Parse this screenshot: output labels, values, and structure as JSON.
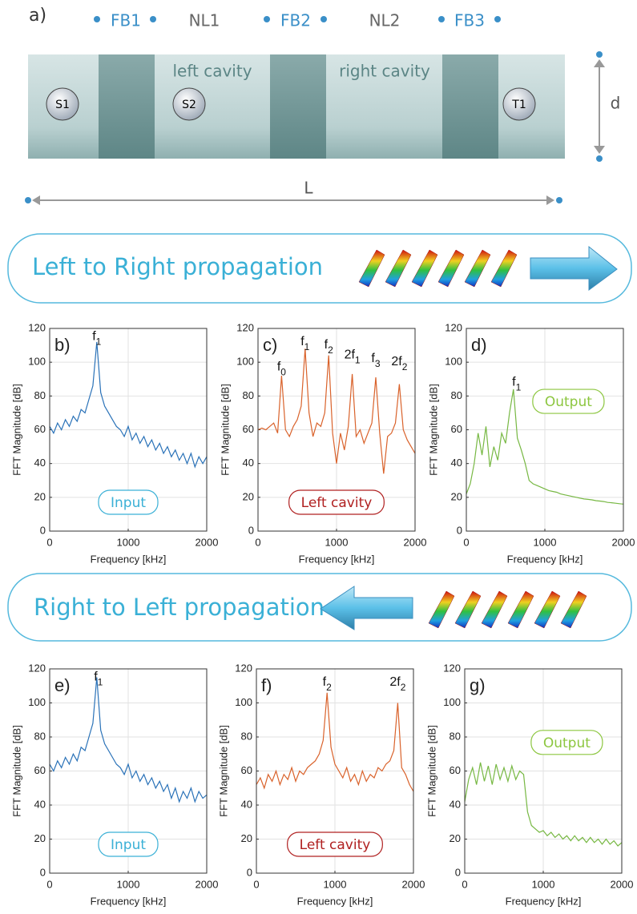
{
  "diagram": {
    "panel_label": "a)",
    "labels": [
      "FB1",
      "NL1",
      "FB2",
      "NL2",
      "FB3"
    ],
    "cavities": [
      "left cavity",
      "right cavity"
    ],
    "sources": [
      "S1",
      "S2",
      "T1"
    ],
    "height_label": "d",
    "length_label": "L"
  },
  "banners": [
    "Left to Right propagation",
    "Right to Left propagation"
  ],
  "chart_data": [
    {
      "type": "line",
      "panel_label": "b)",
      "xlabel": "Frequency [kHz]",
      "ylabel": "FFT Magnitude [dB]",
      "xlim": [
        0,
        2000
      ],
      "ylim": [
        0,
        120
      ],
      "xticks": [
        0,
        1000,
        2000
      ],
      "yticks": [
        0,
        20,
        40,
        60,
        80,
        100,
        120
      ],
      "grid": true,
      "legend_position": "lower center",
      "legend_color": "#3ab0d6",
      "x": [
        0,
        50,
        100,
        150,
        200,
        250,
        300,
        350,
        400,
        450,
        500,
        550,
        600,
        650,
        700,
        750,
        800,
        850,
        900,
        950,
        1000,
        1050,
        1100,
        1150,
        1200,
        1250,
        1300,
        1350,
        1400,
        1450,
        1500,
        1550,
        1600,
        1650,
        1700,
        1750,
        1800,
        1850,
        1900,
        1950,
        2000
      ],
      "series": [
        {
          "name": "Input",
          "color": "#2a72b8",
          "values": [
            62,
            58,
            64,
            60,
            66,
            62,
            68,
            65,
            72,
            70,
            78,
            86,
            112,
            82,
            74,
            70,
            66,
            62,
            60,
            56,
            62,
            54,
            58,
            52,
            56,
            50,
            54,
            48,
            52,
            46,
            50,
            44,
            48,
            42,
            46,
            40,
            46,
            38,
            44,
            40,
            44
          ]
        }
      ],
      "annotations": [
        {
          "text": "f",
          "sub": "1",
          "x": 600,
          "y": 115
        }
      ]
    },
    {
      "type": "line",
      "panel_label": "c)",
      "xlabel": "Frequency [kHz]",
      "ylabel": "FFT Magnitude [dB]",
      "xlim": [
        0,
        2000
      ],
      "ylim": [
        0,
        120
      ],
      "xticks": [
        0,
        1000,
        2000
      ],
      "yticks": [
        0,
        20,
        40,
        60,
        80,
        100,
        120
      ],
      "grid": true,
      "legend_position": "lower center",
      "legend_color": "#b02020",
      "x": [
        0,
        50,
        100,
        150,
        200,
        250,
        300,
        350,
        400,
        450,
        500,
        550,
        600,
        650,
        700,
        750,
        800,
        850,
        900,
        950,
        1000,
        1050,
        1100,
        1150,
        1200,
        1250,
        1300,
        1350,
        1400,
        1450,
        1500,
        1550,
        1600,
        1650,
        1700,
        1750,
        1800,
        1850,
        1900,
        1950,
        2000
      ],
      "series": [
        {
          "name": "Left cavity",
          "color": "#d9622b",
          "values": [
            60,
            61,
            60,
            62,
            64,
            58,
            92,
            60,
            56,
            62,
            66,
            74,
            108,
            70,
            56,
            64,
            62,
            70,
            104,
            58,
            40,
            58,
            48,
            62,
            93,
            56,
            60,
            52,
            58,
            64,
            91,
            58,
            34,
            56,
            58,
            64,
            87,
            60,
            54,
            50,
            46
          ]
        }
      ],
      "annotations": [
        {
          "text": "f",
          "sub": "0",
          "x": 300,
          "y": 97
        },
        {
          "text": "f",
          "sub": "1",
          "x": 600,
          "y": 112
        },
        {
          "text": "f",
          "sub": "2",
          "x": 900,
          "y": 110
        },
        {
          "text": "2f",
          "sub": "1",
          "x": 1200,
          "y": 104
        },
        {
          "text": "f",
          "sub": "3",
          "x": 1500,
          "y": 102
        },
        {
          "text": "2f",
          "sub": "2",
          "x": 1800,
          "y": 100
        }
      ]
    },
    {
      "type": "line",
      "panel_label": "d)",
      "xlabel": "Frequency [kHz]",
      "ylabel": "FFT Magnitude [dB]",
      "xlim": [
        0,
        2000
      ],
      "ylim": [
        0,
        120
      ],
      "xticks": [
        0,
        1000,
        2000
      ],
      "yticks": [
        0,
        20,
        40,
        60,
        80,
        100,
        120
      ],
      "grid": true,
      "legend_position": "upper right",
      "legend_color": "#8cc63f",
      "x": [
        0,
        50,
        100,
        150,
        200,
        250,
        300,
        350,
        400,
        450,
        500,
        550,
        600,
        650,
        700,
        750,
        800,
        850,
        900,
        950,
        1000,
        1050,
        1100,
        1150,
        1200,
        1250,
        1300,
        1350,
        1400,
        1450,
        1500,
        1550,
        1600,
        1650,
        1700,
        1750,
        1800,
        1850,
        1900,
        1950,
        2000
      ],
      "series": [
        {
          "name": "Output",
          "color": "#77b843",
          "values": [
            22,
            28,
            40,
            58,
            45,
            62,
            38,
            50,
            42,
            58,
            52,
            70,
            84,
            55,
            48,
            40,
            30,
            28,
            27,
            26,
            25,
            24,
            23.5,
            23,
            22,
            21.5,
            21,
            20.5,
            20,
            19.5,
            19,
            18.8,
            18.5,
            18,
            17.8,
            17.5,
            17,
            16.8,
            16.5,
            16.2,
            16
          ]
        }
      ],
      "annotations": [
        {
          "text": "f",
          "sub": "1",
          "x": 640,
          "y": 88
        }
      ]
    },
    {
      "type": "line",
      "panel_label": "e)",
      "xlabel": "Frequency [kHz]",
      "ylabel": "FFT Magnitude [dB]",
      "xlim": [
        0,
        2000
      ],
      "ylim": [
        0,
        120
      ],
      "xticks": [
        0,
        1000,
        2000
      ],
      "yticks": [
        0,
        20,
        40,
        60,
        80,
        100,
        120
      ],
      "grid": true,
      "legend_position": "lower center",
      "legend_color": "#3ab0d6",
      "x": [
        0,
        50,
        100,
        150,
        200,
        250,
        300,
        350,
        400,
        450,
        500,
        550,
        600,
        650,
        700,
        750,
        800,
        850,
        900,
        950,
        1000,
        1050,
        1100,
        1150,
        1200,
        1250,
        1300,
        1350,
        1400,
        1450,
        1500,
        1550,
        1600,
        1650,
        1700,
        1750,
        1800,
        1850,
        1900,
        1950,
        2000
      ],
      "series": [
        {
          "name": "Input",
          "color": "#2a72b8",
          "values": [
            64,
            60,
            66,
            62,
            68,
            64,
            70,
            66,
            74,
            72,
            80,
            88,
            115,
            84,
            76,
            72,
            68,
            64,
            62,
            58,
            64,
            56,
            60,
            54,
            58,
            52,
            56,
            50,
            54,
            48,
            52,
            44,
            50,
            42,
            48,
            44,
            50,
            42,
            48,
            44,
            46
          ]
        }
      ],
      "annotations": [
        {
          "text": "f",
          "sub": "1",
          "x": 620,
          "y": 115
        }
      ]
    },
    {
      "type": "line",
      "panel_label": "f)",
      "xlabel": "Frequency [kHz]",
      "ylabel": "FFT Magnitude [dB]",
      "xlim": [
        0,
        2000
      ],
      "ylim": [
        0,
        120
      ],
      "xticks": [
        0,
        1000,
        2000
      ],
      "yticks": [
        0,
        20,
        40,
        60,
        80,
        100,
        120
      ],
      "grid": true,
      "legend_position": "lower center",
      "legend_color": "#b02020",
      "x": [
        0,
        50,
        100,
        150,
        200,
        250,
        300,
        350,
        400,
        450,
        500,
        550,
        600,
        650,
        700,
        750,
        800,
        850,
        900,
        950,
        1000,
        1050,
        1100,
        1150,
        1200,
        1250,
        1300,
        1350,
        1400,
        1450,
        1500,
        1550,
        1600,
        1650,
        1700,
        1750,
        1800,
        1850,
        1900,
        1950,
        2000
      ],
      "series": [
        {
          "name": "Left cavity",
          "color": "#d9622b",
          "values": [
            52,
            56,
            50,
            58,
            54,
            60,
            52,
            58,
            55,
            62,
            54,
            60,
            58,
            62,
            64,
            66,
            70,
            78,
            106,
            74,
            64,
            60,
            56,
            62,
            54,
            58,
            52,
            60,
            54,
            58,
            56,
            62,
            60,
            64,
            66,
            72,
            100,
            62,
            58,
            52,
            48
          ]
        }
      ],
      "annotations": [
        {
          "text": "f",
          "sub": "2",
          "x": 900,
          "y": 112
        },
        {
          "text": "2f",
          "sub": "2",
          "x": 1800,
          "y": 112
        }
      ]
    },
    {
      "type": "line",
      "panel_label": "g)",
      "xlabel": "Frequency [kHz]",
      "ylabel": "FFT Magnitude [dB]",
      "xlim": [
        0,
        2000
      ],
      "ylim": [
        0,
        120
      ],
      "xticks": [
        0,
        1000,
        2000
      ],
      "yticks": [
        0,
        20,
        40,
        60,
        80,
        100,
        120
      ],
      "grid": true,
      "legend_position": "upper right",
      "legend_color": "#8cc63f",
      "x": [
        0,
        50,
        100,
        150,
        200,
        250,
        300,
        350,
        400,
        450,
        500,
        550,
        600,
        650,
        700,
        750,
        800,
        850,
        900,
        950,
        1000,
        1050,
        1100,
        1150,
        1200,
        1250,
        1300,
        1350,
        1400,
        1450,
        1500,
        1550,
        1600,
        1650,
        1700,
        1750,
        1800,
        1850,
        1900,
        1950,
        2000
      ],
      "series": [
        {
          "name": "Output",
          "color": "#77b843",
          "values": [
            42,
            55,
            62,
            52,
            65,
            54,
            63,
            52,
            64,
            55,
            62,
            54,
            63,
            55,
            60,
            58,
            36,
            28,
            26,
            24,
            25,
            22,
            24,
            21,
            23,
            20,
            22,
            19,
            22,
            19,
            21,
            18,
            21,
            18,
            20,
            17,
            20,
            17,
            19,
            16,
            18
          ]
        }
      ],
      "annotations": []
    }
  ]
}
